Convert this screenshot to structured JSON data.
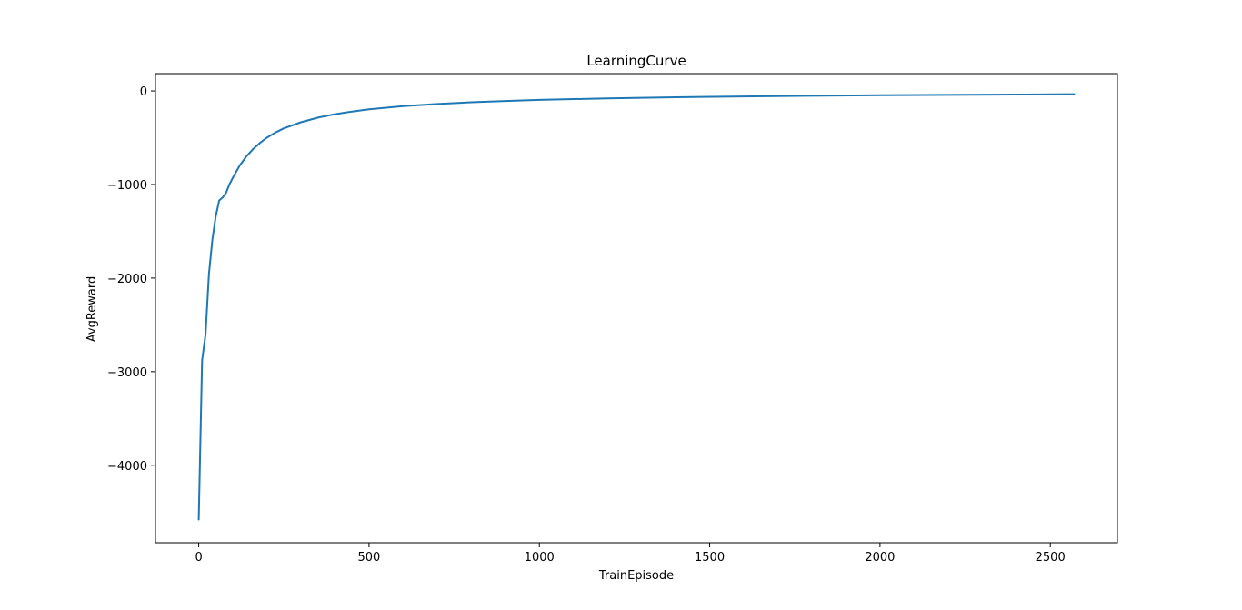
{
  "chart_data": {
    "type": "line",
    "title": "LearningCurve",
    "xlabel": "TrainEpisode",
    "ylabel": "AvgReward",
    "xlim": [
      -127,
      2697
    ],
    "ylim": [
      -4828,
      185
    ],
    "xticks": [
      0,
      500,
      1000,
      1500,
      2000,
      2500
    ],
    "xtick_labels": [
      "0",
      "500",
      "1000",
      "1500",
      "2000",
      "2500"
    ],
    "yticks": [
      -4000,
      -3000,
      -2000,
      -1000,
      0
    ],
    "ytick_labels": [
      "−4000",
      "−3000",
      "−2000",
      "−1000",
      "0"
    ],
    "grid": false,
    "legend": "none",
    "series": [
      {
        "color": "#1f77b4",
        "x": [
          0,
          10,
          20,
          30,
          40,
          50,
          60,
          70,
          80,
          90,
          100,
          120,
          140,
          160,
          180,
          200,
          225,
          250,
          300,
          350,
          400,
          450,
          500,
          600,
          700,
          800,
          900,
          1000,
          1200,
          1400,
          1600,
          1800,
          2000,
          2200,
          2400,
          2570
        ],
        "y": [
          -4580,
          -2880,
          -2600,
          -1960,
          -1590,
          -1340,
          -1170,
          -1140,
          -1090,
          -1000,
          -930,
          -800,
          -700,
          -620,
          -555,
          -500,
          -445,
          -400,
          -335,
          -285,
          -248,
          -220,
          -197,
          -163,
          -139,
          -121,
          -107,
          -96,
          -79,
          -68,
          -59,
          -52,
          -46,
          -42,
          -38,
          -35
        ]
      }
    ]
  }
}
